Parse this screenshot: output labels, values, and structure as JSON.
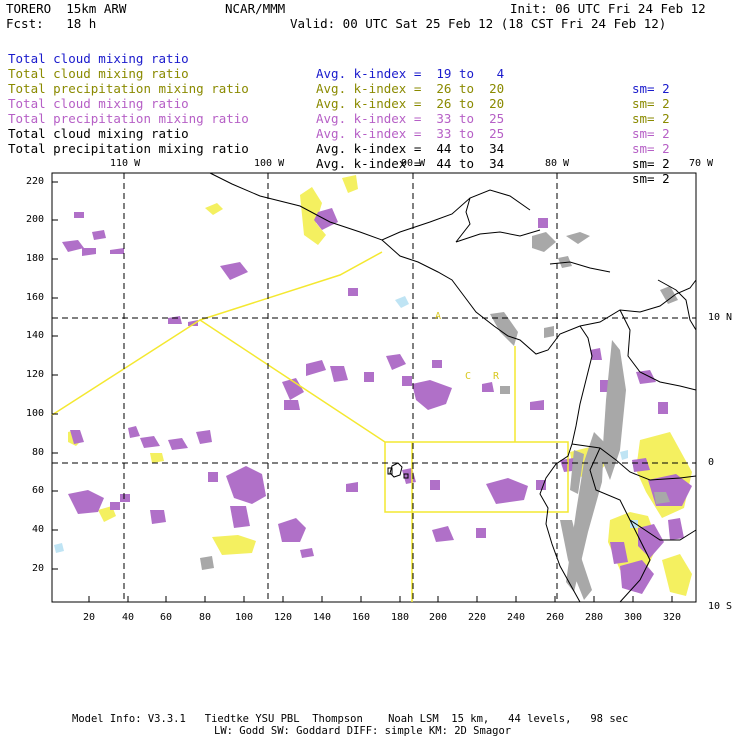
{
  "header": {
    "model": "TORERO  15km ARW",
    "org": "NCAR/MMM",
    "init": "Init: 06 UTC Fri 24 Feb 12",
    "fcst": "Fcst:   18 h",
    "valid": "Valid: 00 UTC Sat 25 Feb 12 (18 CST Fri 24 Feb 12)"
  },
  "legend": [
    {
      "field": "Total cloud mixing ratio",
      "kindex": "Avg. k-index =  19 to   4",
      "sm": "sm= 2",
      "color": "#1a1acc"
    },
    {
      "field": "Total cloud mixing ratio",
      "kindex": "Avg. k-index =  26 to  20",
      "sm": "sm= 2",
      "color": "#8a8a00"
    },
    {
      "field": "Total precipitation mixing ratio",
      "kindex": "Avg. k-index =  26 to  20",
      "sm": "sm= 2",
      "color": "#8a8a00"
    },
    {
      "field": "Total cloud mixing ratio",
      "kindex": "Avg. k-index =  33 to  25",
      "sm": "sm= 2",
      "color": "#b65fc6"
    },
    {
      "field": "Total precipitation mixing ratio",
      "kindex": "Avg. k-index =  33 to  25",
      "sm": "sm= 2",
      "color": "#b65fc6"
    },
    {
      "field": "Total cloud mixing ratio",
      "kindex": "Avg. k-index =  44 to  34",
      "sm": "sm= 2",
      "color": "#000000"
    },
    {
      "field": "Total precipitation mixing ratio",
      "kindex": "Avg. k-index =  44 to  34",
      "sm": "sm= 2",
      "color": "#000000"
    }
  ],
  "axes": {
    "top_lon_labels": [
      "110 W",
      "100 W",
      "90 W",
      "80 W",
      "70 W"
    ],
    "right_lat_labels": [
      "10 N",
      "0",
      "10 S"
    ],
    "left_ticks": [
      "220",
      "200",
      "180",
      "160",
      "140",
      "120",
      "100",
      "80",
      "60",
      "40",
      "20"
    ],
    "bottom_ticks": [
      "20",
      "40",
      "60",
      "80",
      "100",
      "120",
      "140",
      "160",
      "180",
      "200",
      "220",
      "240",
      "260",
      "280",
      "300",
      "320"
    ]
  },
  "map_labels": {
    "a": "A",
    "c": "C",
    "r": "R"
  },
  "footer": {
    "line1": "Model Info: V3.3.1   Tiedtke YSU PBL  Thompson    Noah LSM  15 km,   44 levels,   98 sec",
    "line2": "LW: Godd SW: Goddard DIFF: simple KM: 2D Smagor"
  },
  "colors": {
    "purple": "#b070c8",
    "yellow": "#f4f060",
    "gray": "#a8a8a8",
    "lightblue": "#bfe4f4",
    "boxes": "#f4e830"
  }
}
